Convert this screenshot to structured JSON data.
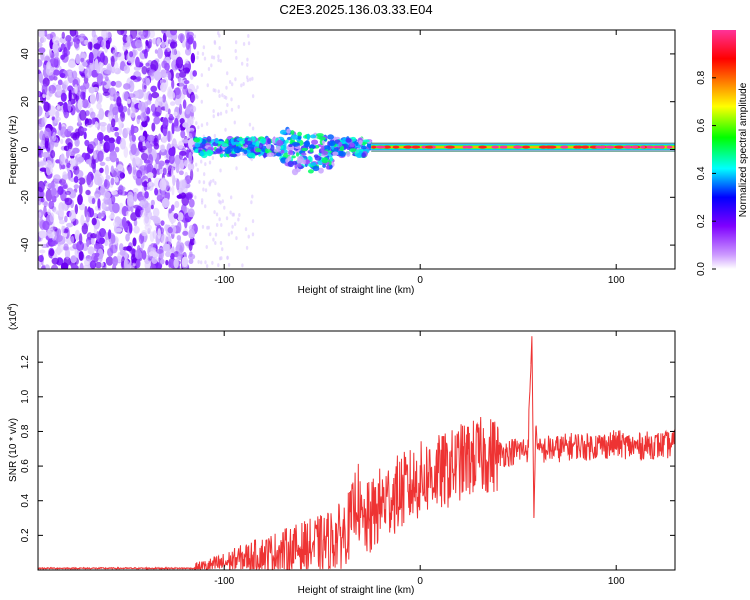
{
  "figure": {
    "title": "C2E3.2025.136.03.33.E04"
  },
  "chart_data": [
    {
      "type": "heatmap",
      "title": "C2E3.2025.136.03.33.E04",
      "xlabel": "Height of straight line (km)",
      "ylabel": "Frequency (Hz)",
      "xlim": [
        -195,
        130
      ],
      "ylim": [
        -50,
        50
      ],
      "x_ticks": [
        -100,
        0,
        100
      ],
      "x_tick_labels": [
        "-100",
        "0",
        "100"
      ],
      "y_ticks": [
        -40,
        -20,
        0,
        20,
        40
      ],
      "y_tick_labels": [
        "-40",
        "-20",
        "0",
        "20",
        "40"
      ],
      "colorbar": {
        "label": "Normalized spectral amplitude",
        "range": [
          0,
          1
        ],
        "ticks": [
          0,
          0.2,
          0.4,
          0.6,
          0.8
        ],
        "tick_labels": [
          "0.0",
          "0.2",
          "0.4",
          "0.6",
          "0.8"
        ],
        "colormap": [
          "#ffffff",
          "#cc99ff",
          "#7f00ff",
          "#0000ff",
          "#00ffff",
          "#00ff00",
          "#ffff00",
          "#ff7f00",
          "#ff0000",
          "#ff3399"
        ]
      },
      "features": {
        "noise_region_x": [
          -195,
          -115
        ],
        "scatter_region_x": [
          -115,
          -25
        ],
        "line_frequency_hz": 1,
        "line_region_x": [
          -25,
          130
        ]
      }
    },
    {
      "type": "line",
      "xlabel": "Height of straight line (km)",
      "ylabel": "SNR (10 * v/v)",
      "multiplier_label": "(x10",
      "multiplier_exp": "4",
      "multiplier_close": ")",
      "xlim": [
        -195,
        130
      ],
      "ylim": [
        0,
        1.38
      ],
      "x_ticks": [
        -100,
        0,
        100
      ],
      "x_tick_labels": [
        "-100",
        "0",
        "100"
      ],
      "y_ticks": [
        0.2,
        0.4,
        0.6,
        0.8,
        1.0,
        1.2
      ],
      "y_tick_labels": [
        "0.2",
        "0.4",
        "0.6",
        "0.8",
        "1.0",
        "1.2"
      ],
      "line_color": "#ee3333",
      "series": [
        {
          "x": [
            -195,
            -160,
            -130,
            -115,
            -110,
            -100,
            -90,
            -80,
            -70,
            -60,
            -50,
            -40,
            -35,
            -32,
            -30,
            -25,
            -20,
            -15,
            -10,
            -5,
            0,
            5,
            10,
            15,
            20,
            25,
            30,
            35,
            40,
            45,
            50,
            55,
            57,
            58,
            59,
            60,
            65,
            70,
            75,
            80,
            85,
            90,
            95,
            100,
            105,
            110,
            115,
            120,
            125,
            130
          ],
          "y": [
            0.01,
            0.01,
            0.01,
            0.01,
            0.02,
            0.04,
            0.07,
            0.09,
            0.11,
            0.13,
            0.15,
            0.2,
            0.28,
            0.45,
            0.25,
            0.3,
            0.38,
            0.42,
            0.45,
            0.48,
            0.52,
            0.55,
            0.56,
            0.58,
            0.62,
            0.64,
            0.66,
            0.66,
            0.67,
            0.68,
            0.69,
            0.7,
            1.35,
            0.3,
            0.85,
            0.68,
            0.7,
            0.7,
            0.71,
            0.72,
            0.71,
            0.72,
            0.72,
            0.73,
            0.72,
            0.71,
            0.72,
            0.72,
            0.72,
            0.73
          ]
        }
      ]
    }
  ]
}
